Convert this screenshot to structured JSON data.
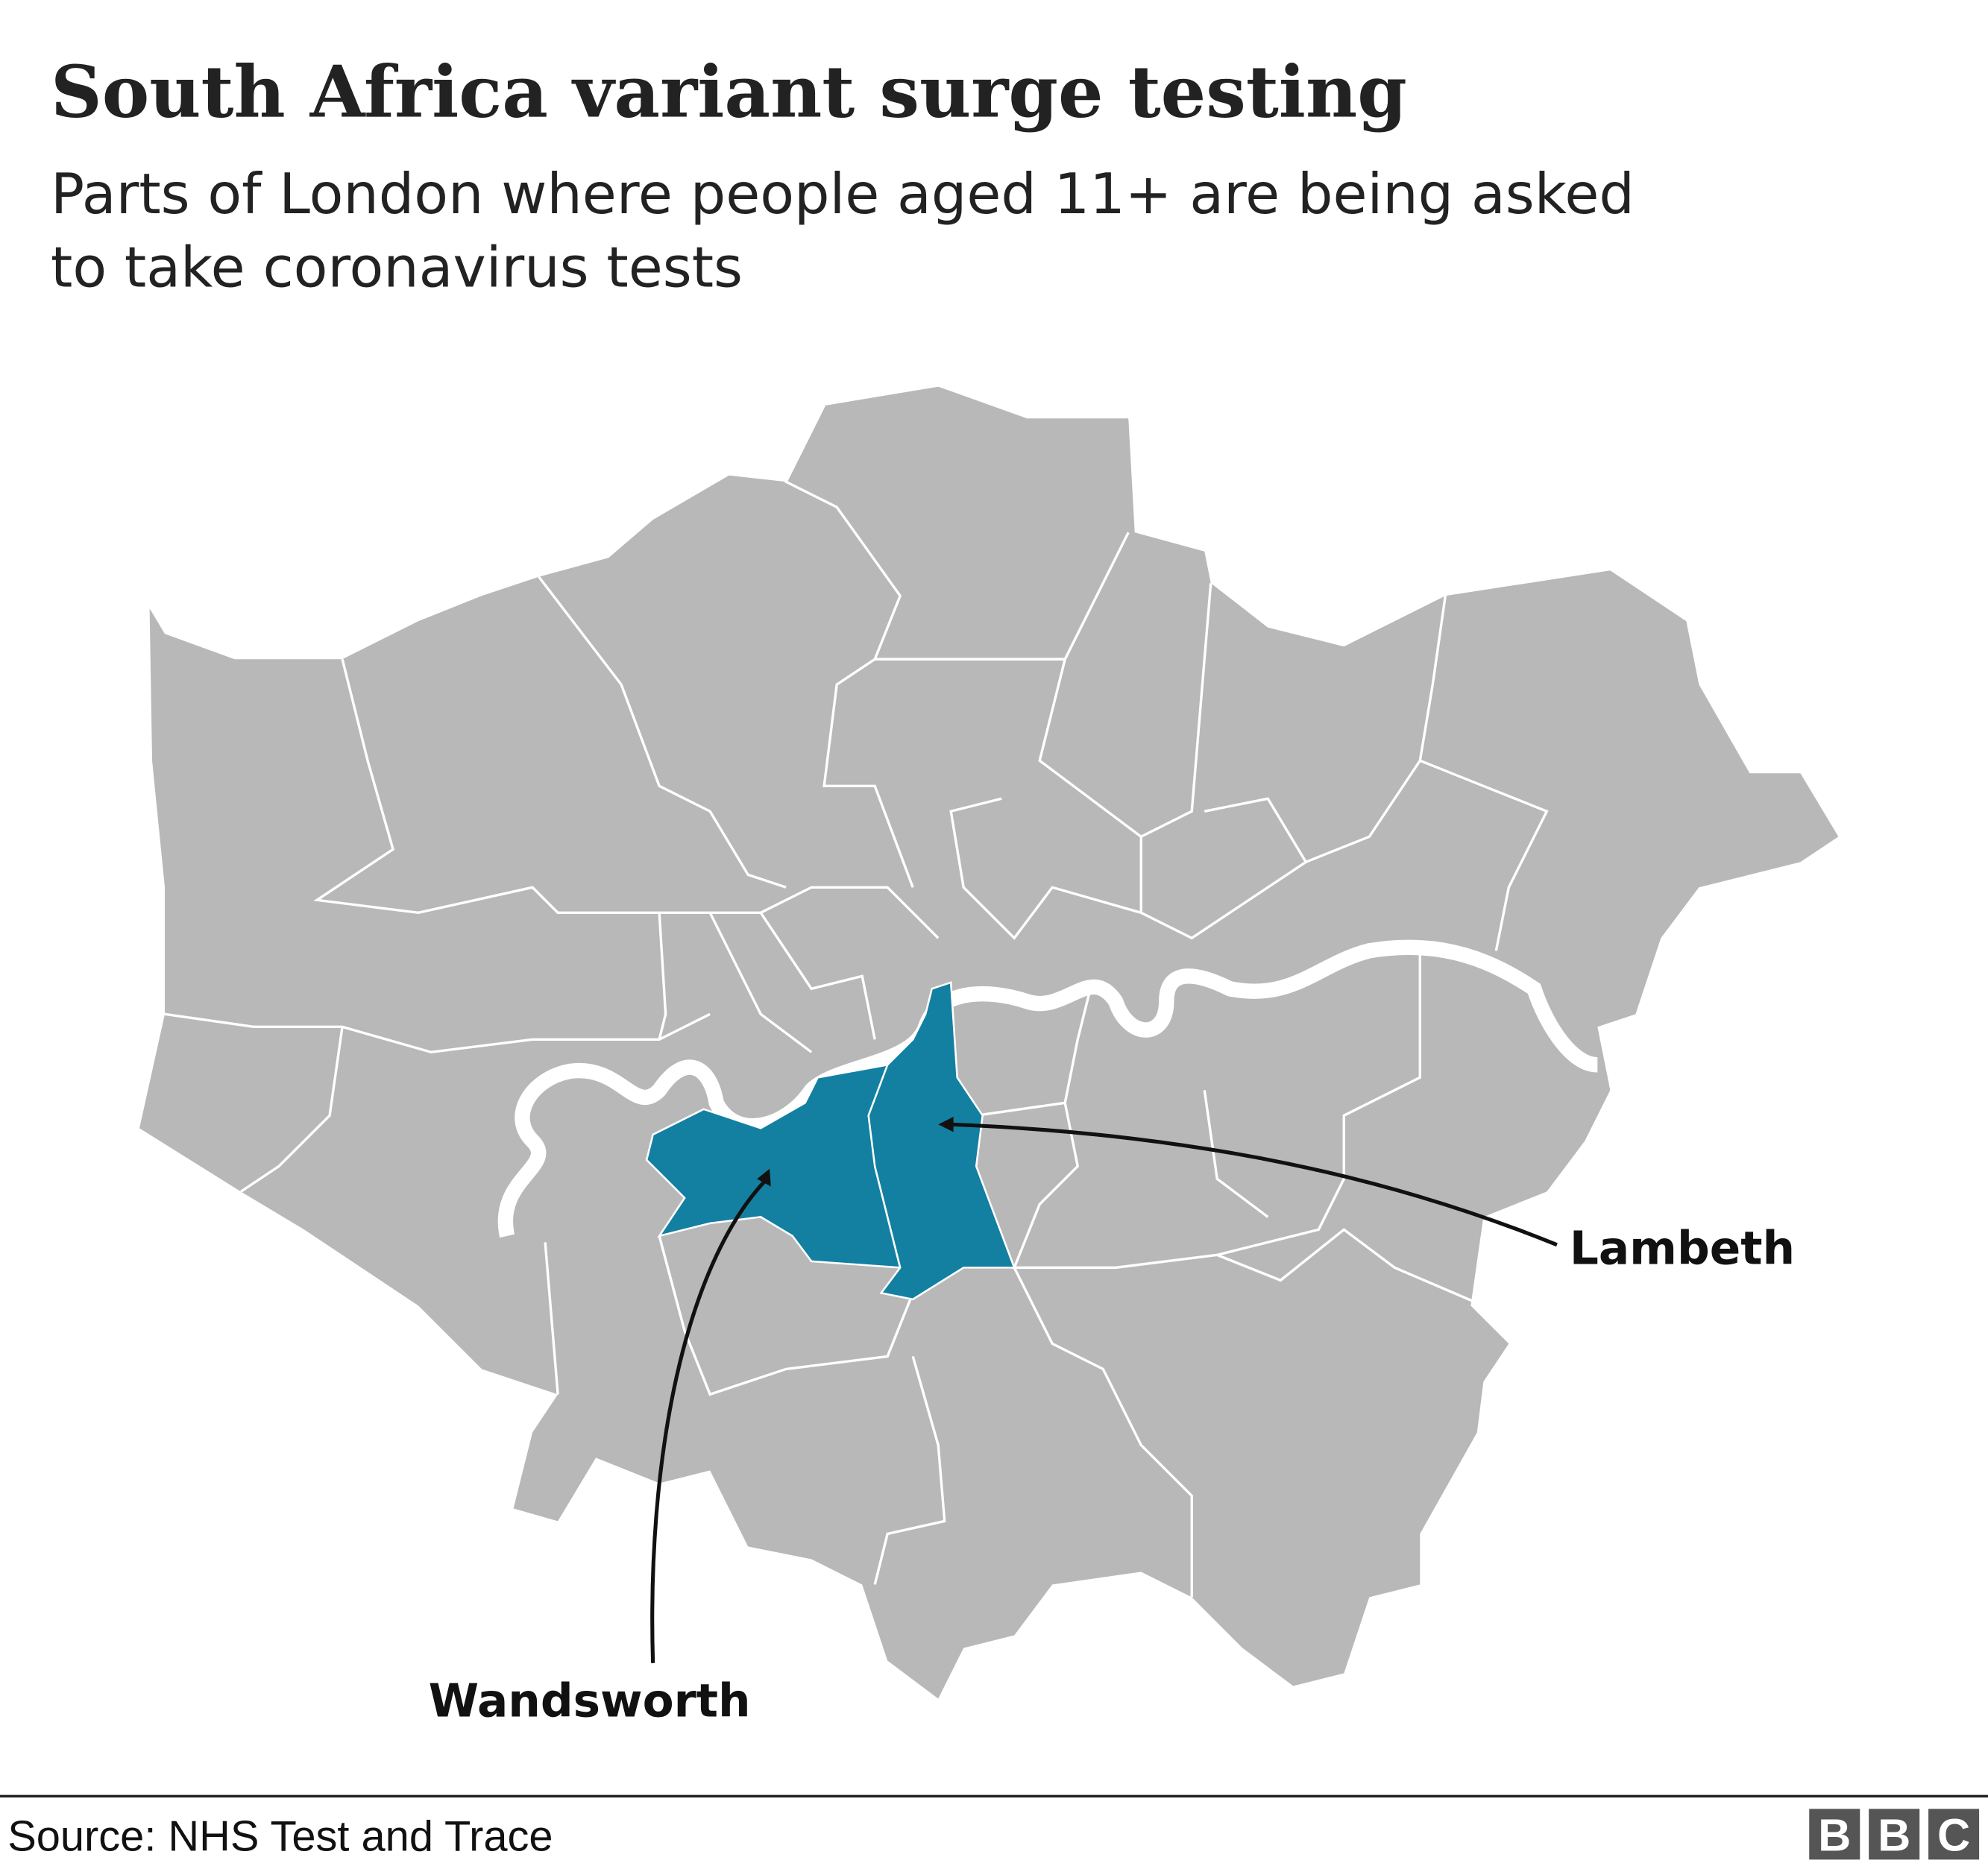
{
  "header": {
    "title": "South Africa variant surge testing",
    "subtitle": [
      "Parts of London where people aged 11+ are being asked",
      "to take coronavirus tests"
    ]
  },
  "map": {
    "labels": [
      {
        "name": "Lambeth",
        "color": "#1380a1"
      },
      {
        "name": "Wandsworth",
        "color": "#1380a1"
      }
    ]
  },
  "footer": {
    "source": "Source: NHS Test and Trace",
    "logo": [
      "B",
      "B",
      "C"
    ]
  }
}
